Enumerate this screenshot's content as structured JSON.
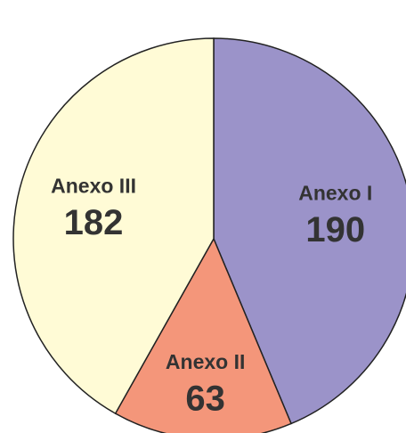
{
  "chart_data": {
    "type": "pie",
    "categories": [
      "Anexo I",
      "Anexo II",
      "Anexo III"
    ],
    "values": [
      190,
      63,
      182
    ],
    "colors": [
      "#9b93c9",
      "#f4967a",
      "#fffbd6"
    ]
  }
}
